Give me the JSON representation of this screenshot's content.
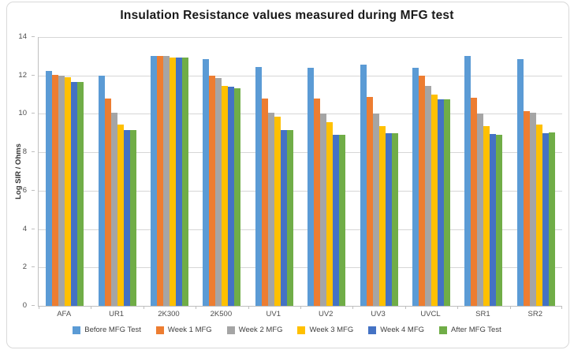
{
  "chart_data": {
    "type": "bar",
    "title": "Insulation Resistance values measured during MFG test",
    "xlabel": "",
    "ylabel": "Log SIR / Ohms",
    "ylim": [
      0,
      14
    ],
    "y_ticks": [
      0,
      2,
      4,
      6,
      8,
      10,
      12,
      14
    ],
    "grid": true,
    "legend_position": "bottom",
    "categories": [
      "AFA",
      "UR1",
      "2K300",
      "2K500",
      "UV1",
      "UV2",
      "UV3",
      "UVCL",
      "SR1",
      "SR2"
    ],
    "series": [
      {
        "name": "Before MFG Test",
        "color": "#5B9BD5",
        "values": [
          12.25,
          12.0,
          13.0,
          12.85,
          12.45,
          12.4,
          12.55,
          12.4,
          13.0,
          12.85
        ]
      },
      {
        "name": "Week 1 MFG",
        "color": "#ED7D31",
        "values": [
          12.05,
          10.8,
          13.0,
          12.0,
          10.8,
          10.8,
          10.9,
          12.0,
          10.85,
          10.15
        ]
      },
      {
        "name": "Week 2 MFG",
        "color": "#A5A5A5",
        "values": [
          12.0,
          10.05,
          13.0,
          11.85,
          10.05,
          10.0,
          10.0,
          11.45,
          10.0,
          10.05
        ]
      },
      {
        "name": "Week 3 MFG",
        "color": "#FFC000",
        "values": [
          11.9,
          9.45,
          12.95,
          11.45,
          9.85,
          9.55,
          9.35,
          11.0,
          9.35,
          9.45
        ]
      },
      {
        "name": "Week 4 MFG",
        "color": "#4472C4",
        "values": [
          11.65,
          9.15,
          12.95,
          11.4,
          9.15,
          8.9,
          9.0,
          10.75,
          8.95,
          9.0
        ]
      },
      {
        "name": "After MFG Test",
        "color": "#70AD47",
        "values": [
          11.65,
          9.15,
          12.95,
          11.35,
          9.15,
          8.9,
          9.0,
          10.75,
          8.9,
          9.05
        ]
      }
    ],
    "colors": {
      "gridline": "#d6d6d6",
      "axis_line": "#bfbfbf",
      "tick_text": "#4d4d4d",
      "title_text": "#1a1a1a"
    }
  }
}
